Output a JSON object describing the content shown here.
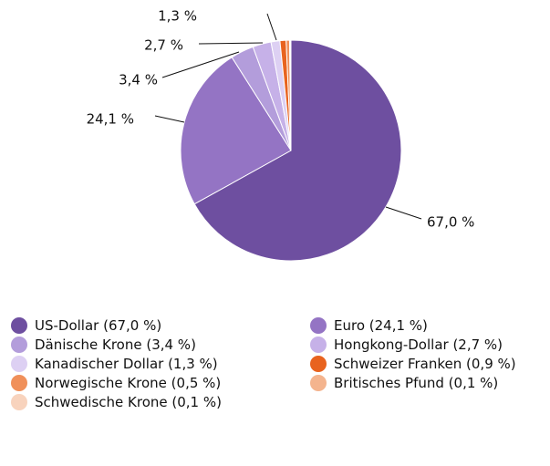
{
  "chart_data": {
    "type": "pie",
    "categories": [
      "US-Dollar (67,0 %)",
      "Euro (24,1 %)",
      "Dänische Krone (3,4 %)",
      "Hongkong-Dollar (2,7 %)",
      "Kanadischer Dollar (1,3 %)",
      "Schweizer Franken (0,9 %)",
      "Norwegische Krone (0,5 %)",
      "Britisches Pfund (0,1 %)",
      "Schwedische Krone (0,1 %)"
    ],
    "values": [
      67.0,
      24.1,
      3.4,
      2.7,
      1.3,
      0.9,
      0.5,
      0.1,
      0.1
    ],
    "value_labels": [
      "67,0 %",
      "24,1 %",
      "3,4 %",
      "2,7 %",
      "1,3 %",
      null,
      null,
      null,
      null
    ],
    "colors": [
      "#6e4fa0",
      "#9474c4",
      "#b39ddb",
      "#c6b1e8",
      "#ddd0f3",
      "#e8631f",
      "#f0905a",
      "#f4b48e",
      "#f8d3bd"
    ]
  }
}
